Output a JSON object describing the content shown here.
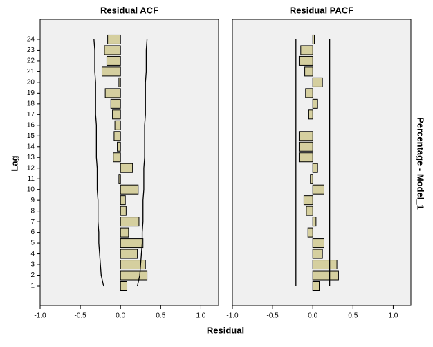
{
  "x_label": "Residual",
  "y_label": "Lag",
  "side_label": "Percentage - Model_1",
  "chart_data": [
    {
      "type": "bar",
      "title": "Residual ACF",
      "orientation": "horizontal",
      "categories": [
        1,
        2,
        3,
        4,
        5,
        6,
        7,
        8,
        9,
        10,
        11,
        12,
        13,
        14,
        15,
        16,
        17,
        18,
        19,
        20,
        21,
        22,
        23,
        24
      ],
      "values": [
        0.08,
        0.33,
        0.31,
        0.21,
        0.28,
        0.1,
        0.23,
        0.07,
        0.06,
        0.22,
        -0.02,
        0.15,
        -0.09,
        -0.04,
        -0.08,
        -0.07,
        -0.1,
        -0.12,
        -0.19,
        -0.02,
        -0.23,
        -0.17,
        -0.2,
        -0.16
      ],
      "upper_limit": [
        0.21,
        0.24,
        0.25,
        0.26,
        0.27,
        0.27,
        0.28,
        0.28,
        0.28,
        0.29,
        0.29,
        0.29,
        0.3,
        0.3,
        0.3,
        0.3,
        0.31,
        0.31,
        0.31,
        0.31,
        0.32,
        0.32,
        0.32,
        0.33
      ],
      "lower_limit": [
        -0.21,
        -0.24,
        -0.25,
        -0.26,
        -0.27,
        -0.27,
        -0.28,
        -0.28,
        -0.28,
        -0.29,
        -0.29,
        -0.29,
        -0.3,
        -0.3,
        -0.3,
        -0.3,
        -0.31,
        -0.31,
        -0.31,
        -0.31,
        -0.32,
        -0.32,
        -0.32,
        -0.33
      ],
      "color": "#d5cf9f",
      "xlim": [
        -1,
        1.22
      ],
      "xticks": [
        {
          "value": -1,
          "label": "-1.0"
        },
        {
          "value": -0.5,
          "label": "-0.5"
        },
        {
          "value": 0,
          "label": "0.0"
        },
        {
          "value": 0.5,
          "label": "0.5"
        },
        {
          "value": 1,
          "label": "1.0"
        }
      ]
    },
    {
      "type": "bar",
      "title": "Residual PACF",
      "orientation": "horizontal",
      "categories": [
        1,
        2,
        3,
        4,
        5,
        6,
        7,
        8,
        9,
        10,
        11,
        12,
        13,
        14,
        15,
        16,
        17,
        18,
        19,
        20,
        21,
        22,
        23,
        24
      ],
      "values": [
        0.08,
        0.32,
        0.3,
        0.12,
        0.14,
        -0.06,
        0.04,
        -0.08,
        -0.11,
        0.14,
        -0.03,
        0.06,
        -0.17,
        -0.17,
        -0.17,
        0.0,
        -0.05,
        0.06,
        -0.09,
        0.12,
        -0.1,
        -0.17,
        -0.15,
        0.02
      ],
      "upper_limit": [
        0.21,
        0.21,
        0.21,
        0.21,
        0.21,
        0.21,
        0.21,
        0.21,
        0.21,
        0.21,
        0.21,
        0.21,
        0.21,
        0.21,
        0.21,
        0.21,
        0.21,
        0.21,
        0.21,
        0.21,
        0.21,
        0.21,
        0.21,
        0.21
      ],
      "lower_limit": [
        -0.21,
        -0.21,
        -0.21,
        -0.21,
        -0.21,
        -0.21,
        -0.21,
        -0.21,
        -0.21,
        -0.21,
        -0.21,
        -0.21,
        -0.21,
        -0.21,
        -0.21,
        -0.21,
        -0.21,
        -0.21,
        -0.21,
        -0.21,
        -0.21,
        -0.21,
        -0.21,
        -0.21
      ],
      "color": "#d5cf9f",
      "xlim": [
        -1,
        1.22
      ],
      "xticks": [
        {
          "value": -1,
          "label": "-1.0"
        },
        {
          "value": -0.5,
          "label": "-0.5"
        },
        {
          "value": 0,
          "label": "0.0"
        },
        {
          "value": 0.5,
          "label": "0.5"
        },
        {
          "value": 1,
          "label": "1.0"
        }
      ]
    }
  ]
}
